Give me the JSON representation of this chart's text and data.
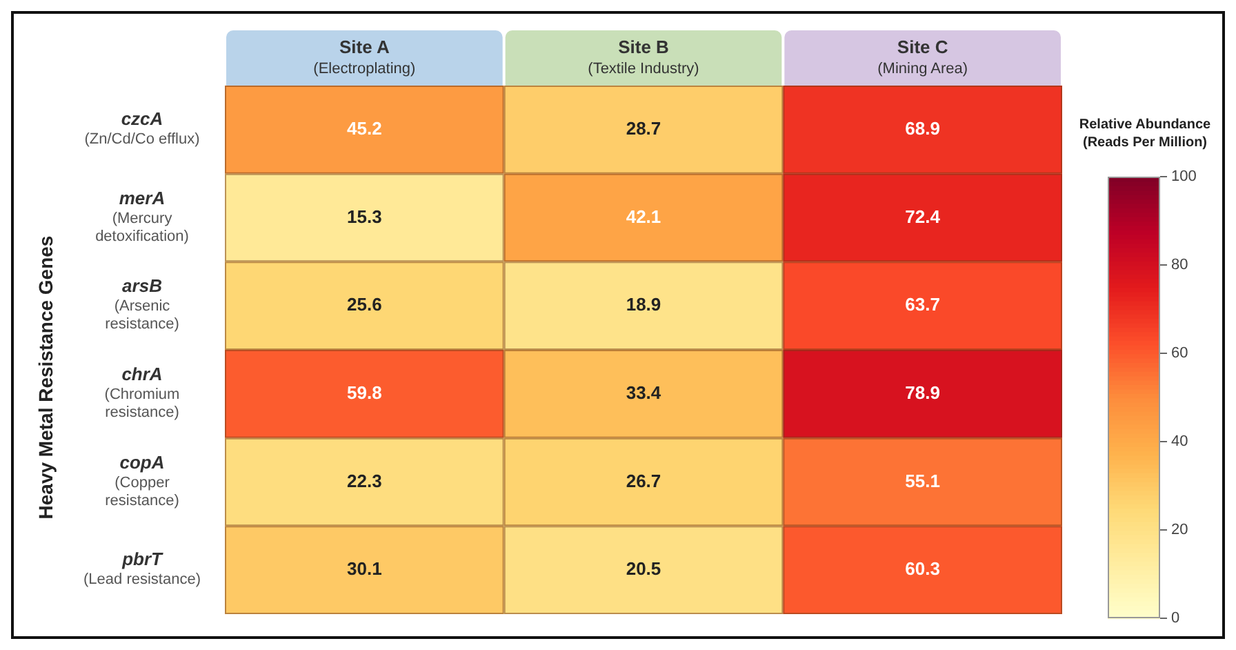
{
  "chart_data": {
    "type": "heatmap",
    "ylabel": "Heavy Metal Resistance Genes",
    "clabel": "Relative Abundance (Reads Per Million)",
    "categories": [
      "Site A (Electroplating)",
      "Site B (Textile Industry)",
      "Site C (Mining Area)"
    ],
    "y_categories": [
      "czcA (Zn/Cd/Co efflux)",
      "merA (Mercury detoxification)",
      "arsB (Arsenic resistance)",
      "chrA (Chromium resistance)",
      "copA (Copper resistance)",
      "pbrT (Lead resistance)"
    ],
    "cells": [
      [
        45.2,
        28.7,
        68.9
      ],
      [
        15.3,
        42.1,
        72.4
      ],
      [
        25.6,
        18.9,
        63.7
      ],
      [
        59.8,
        33.4,
        78.9
      ],
      [
        22.3,
        26.7,
        55.1
      ],
      [
        30.1,
        20.5,
        60.3
      ]
    ],
    "clim": [
      0,
      100
    ],
    "cticks": [
      0,
      20,
      40,
      60,
      80,
      100
    ],
    "data_labels": true
  }
}
